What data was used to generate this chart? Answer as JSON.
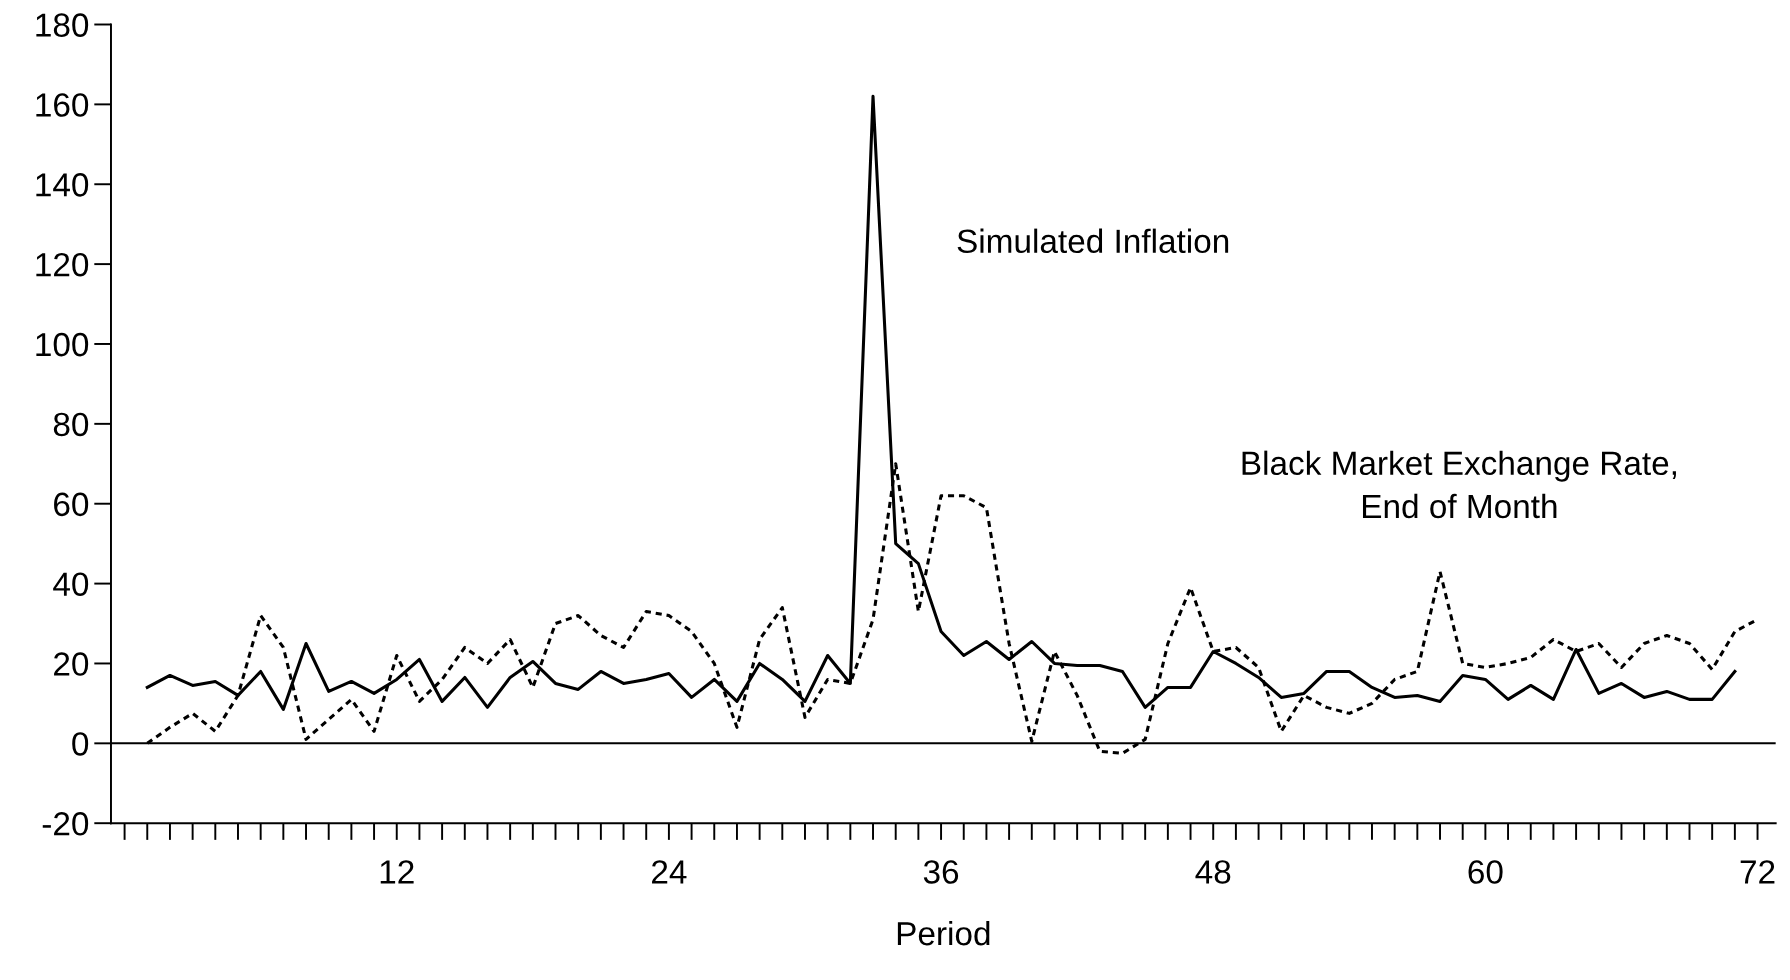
{
  "chart_data": {
    "type": "line",
    "xlabel": "Period",
    "xlim": [
      -0.6,
      72.8
    ],
    "ylim": [
      -20,
      180
    ],
    "yticks": [
      -20,
      0,
      20,
      40,
      60,
      80,
      100,
      120,
      140,
      160,
      180
    ],
    "xticks": [
      12,
      24,
      36,
      48,
      60,
      72
    ],
    "grid": false,
    "legend": false,
    "marker": "none",
    "ref_lines": [
      {
        "axis": "y",
        "value": 0,
        "color": "#000000"
      }
    ],
    "series": [
      {
        "name": "Simulated Inflation",
        "color": "#000000",
        "line_style": "solid",
        "x": [
          1,
          2,
          3,
          4,
          5,
          6,
          7,
          8,
          9,
          10,
          11,
          12,
          13,
          14,
          15,
          16,
          17,
          18,
          19,
          20,
          21,
          22,
          23,
          24,
          25,
          26,
          27,
          28,
          29,
          30,
          31,
          32,
          33,
          34,
          35,
          36,
          37,
          38,
          39,
          40,
          41,
          42,
          43,
          44,
          45,
          46,
          47,
          48,
          49,
          50,
          51,
          52,
          53,
          54,
          55,
          56,
          57,
          58,
          59,
          60,
          61,
          62,
          63,
          64,
          65,
          66,
          67,
          68,
          69,
          70,
          71
        ],
        "values": [
          14,
          17,
          14.5,
          15.5,
          12,
          18,
          8.5,
          25,
          13,
          15.5,
          12.5,
          16,
          21,
          10.5,
          16.5,
          9,
          16.5,
          20.5,
          15,
          13.5,
          18,
          15,
          16,
          17.5,
          11.5,
          16,
          10.5,
          20,
          16,
          10.5,
          22,
          15,
          162,
          50,
          45,
          28,
          22,
          25.5,
          21,
          25.5,
          20,
          19.5,
          19.5,
          18,
          9,
          14,
          14,
          23,
          20,
          16.5,
          11.5,
          12.5,
          18,
          18,
          14,
          11.5,
          12,
          10.5,
          17,
          16,
          11,
          14.5,
          11,
          23.5,
          12.5,
          15,
          11.5,
          13,
          11,
          11,
          18
        ]
      },
      {
        "name": "Black Market Exchange Rate,\nEnd of Month",
        "color": "#000000",
        "line_style": "dotted",
        "x": [
          1,
          2,
          3,
          4,
          5,
          6,
          7,
          8,
          9,
          10,
          11,
          12,
          13,
          14,
          15,
          16,
          17,
          18,
          19,
          20,
          21,
          22,
          23,
          24,
          25,
          26,
          27,
          28,
          29,
          30,
          31,
          32,
          33,
          34,
          35,
          36,
          37,
          38,
          39,
          40,
          41,
          42,
          43,
          44,
          45,
          46,
          47,
          48,
          49,
          50,
          51,
          52,
          53,
          54,
          55,
          56,
          57,
          58,
          59,
          60,
          61,
          62,
          63,
          64,
          65,
          66,
          67,
          68,
          69,
          70,
          71,
          72
        ],
        "values": [
          0,
          4,
          7.5,
          3,
          12,
          32,
          24,
          1,
          6,
          11,
          3,
          22,
          10.5,
          16,
          24,
          20,
          26,
          14,
          30,
          32,
          27,
          24,
          33,
          32,
          28,
          20,
          4,
          26,
          34,
          6.5,
          16,
          15,
          31,
          70,
          33,
          62,
          62,
          59,
          25,
          0.5,
          23,
          12,
          -2,
          -2.5,
          1,
          25,
          39,
          23,
          24,
          19,
          3,
          12,
          9,
          7.5,
          10,
          16,
          18,
          43,
          20,
          19,
          20,
          21.5,
          26,
          23,
          25,
          19,
          25,
          27,
          25,
          18.5,
          28,
          31
        ]
      }
    ]
  }
}
